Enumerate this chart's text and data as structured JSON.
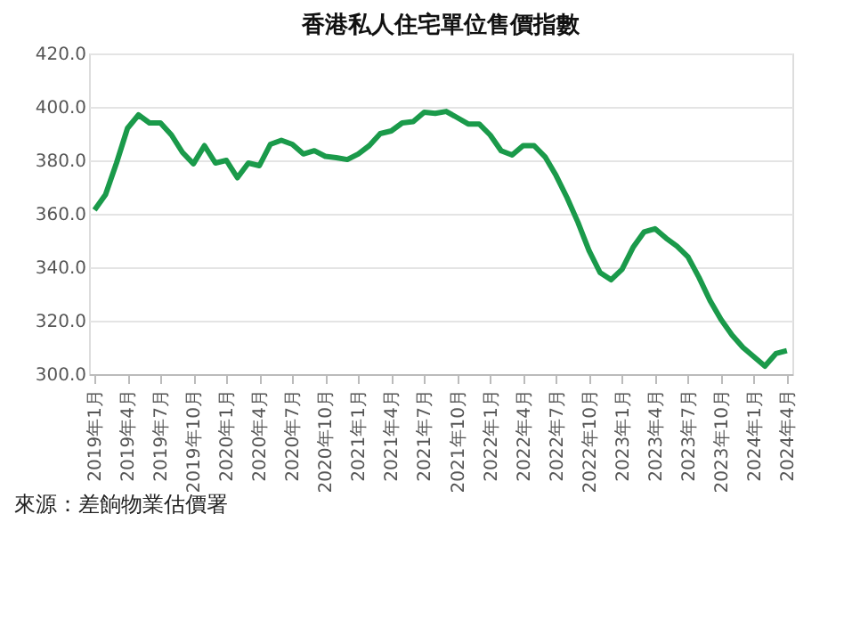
{
  "chart_data": {
    "type": "line",
    "title": "香港私人住宅單位售價指數",
    "categories": [
      "2019年1月",
      null,
      null,
      "2019年4月",
      null,
      null,
      "2019年7月",
      null,
      null,
      "2019年10月",
      null,
      null,
      "2020年1月",
      null,
      null,
      "2020年4月",
      null,
      null,
      "2020年7月",
      null,
      null,
      "2020年10月",
      null,
      null,
      "2021年1月",
      null,
      null,
      "2021年4月",
      null,
      null,
      "2021年7月",
      null,
      null,
      "2021年10月",
      null,
      null,
      "2022年1月",
      null,
      null,
      "2022年4月",
      null,
      null,
      "2022年7月",
      null,
      null,
      "2022年10月",
      null,
      null,
      "2023年1月",
      null,
      null,
      "2023年4月",
      null,
      null,
      "2023年7月",
      null,
      null,
      "2023年10月",
      null,
      null,
      "2024年1月",
      null,
      null,
      "2024年4月"
    ],
    "series": [
      {
        "color": "#1a9a4a",
        "values": [
          361.4,
          367.2,
          379,
          392,
          397,
          394,
          394,
          389.5,
          383,
          378.7,
          385.5,
          379,
          380,
          373.5,
          379,
          378,
          386,
          387.5,
          386,
          382.4,
          383.6,
          381.5,
          381,
          380.3,
          382.4,
          385.5,
          390,
          391,
          394,
          394.5,
          398,
          397.6,
          398.3,
          396,
          393.6,
          393.6,
          389.5,
          383.6,
          382,
          385.5,
          385.5,
          381.3,
          374.3,
          366,
          356.7,
          346.2,
          338,
          335.3,
          339.2,
          347.4,
          353.2,
          354.4,
          350.9,
          347.9,
          343.9,
          336.2,
          327.6,
          320.5,
          314.7,
          310,
          306.5,
          303,
          307.7,
          308.8
        ]
      }
    ],
    "ylim": [
      300,
      420
    ],
    "yticks": [
      {
        "value": 300,
        "label": "300.0"
      },
      {
        "value": 320,
        "label": "320.0"
      },
      {
        "value": 340,
        "label": "340.0"
      },
      {
        "value": 360,
        "label": "360.0"
      },
      {
        "value": 380,
        "label": "380.0"
      },
      {
        "value": 400,
        "label": "400.0"
      },
      {
        "value": 420,
        "label": "420.0"
      }
    ],
    "grid": "y",
    "marker": "none",
    "line_style": "solid",
    "annotations": [
      "來源：差餉物業估價署"
    ]
  }
}
